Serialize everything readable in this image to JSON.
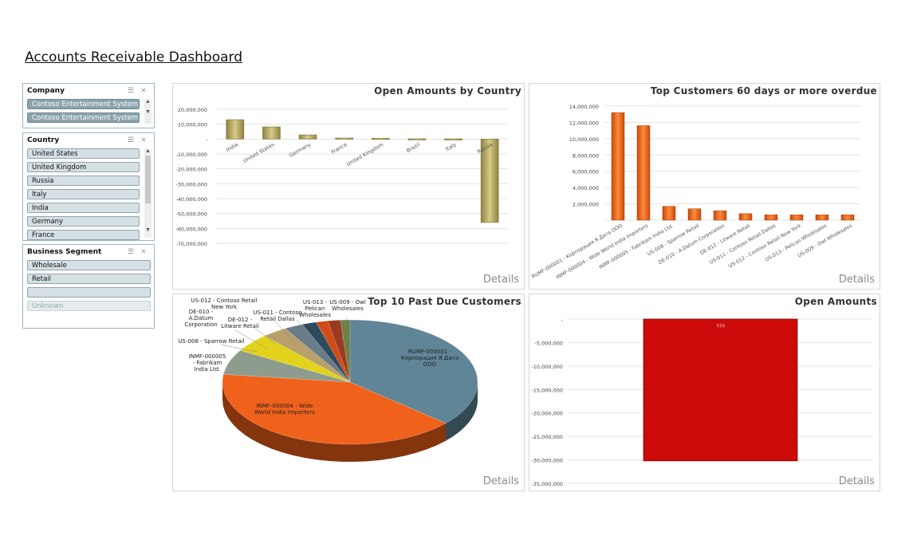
{
  "title": "Accounts Receivable Dashboard",
  "slicers": {
    "company": {
      "title": "Company",
      "items": [
        "Contoso Entertainment System ...",
        "Contoso Entertainment System ..."
      ]
    },
    "country": {
      "title": "Country",
      "items": [
        "United States",
        "United Kingdom",
        "Russia",
        "Italy",
        "India",
        "Germany",
        "France"
      ]
    },
    "segment": {
      "title": "Business Segment",
      "items": [
        "Wholesale",
        "Retail",
        "",
        "Unknown"
      ]
    }
  },
  "panels": {
    "country": {
      "title": "Open Amounts by Country",
      "details": "Details"
    },
    "overdue": {
      "title": "Top Customers 60 days or more overdue",
      "details": "Details"
    },
    "pastdue": {
      "title": "Top 10 Past Due Customers",
      "details": "Details"
    },
    "open": {
      "title": "Open Amounts",
      "details": "Details"
    }
  },
  "colors": {
    "gold": "#b8a860",
    "orange": "#f26a1b",
    "red": "#cc0a0a",
    "slate": "#5f8596"
  },
  "chart_data": [
    {
      "type": "bar",
      "title": "Open Amounts by Country",
      "categories": [
        "India",
        "United States",
        "Germany",
        "France",
        "United Kingdom",
        "Brazil",
        "Italy",
        "Russia"
      ],
      "values": [
        13000000,
        8200000,
        2800000,
        700000,
        500000,
        200000,
        150000,
        -56000000
      ],
      "ylim": [
        -70000000,
        20000000
      ],
      "yticks": [
        "20,000,000",
        "10,000,000",
        "-",
        "-10,000,000",
        "-20,000,000",
        "-30,000,000",
        "-40,000,000",
        "-50,000,000",
        "-60,000,000",
        "-70,000,000"
      ],
      "grid": true
    },
    {
      "type": "bar",
      "title": "Top Customers 60 days or more overdue",
      "categories": [
        "RUMF-000001 - Корпорация Я.Дата ООО",
        "INMF-000004 - Wide World India Importers",
        "INMF-000005 - Fabrikam India Ltd.",
        "US-008 - Sparrow Retail",
        "DE-010 - A.Datum Corporation",
        "DE-012 - Litware Retail",
        "US-011 - Contoso Retail Dallas",
        "US-012 - Contoso Retail New York",
        "US-013 - Pelican Wholesales",
        "US-009 - Owl Wholesales"
      ],
      "values": [
        13200000,
        11600000,
        1700000,
        1400000,
        1150000,
        800000,
        650000,
        650000,
        650000,
        650000
      ],
      "ylim": [
        0,
        14000000
      ],
      "yticks": [
        "14,000,000",
        "12,000,000",
        "10,000,000",
        "8,000,000",
        "6,000,000",
        "4,000,000",
        "2,000,000"
      ],
      "grid": true
    },
    {
      "type": "pie",
      "title": "Top 10 Past Due Customers",
      "labels": [
        "RUMF-000001 - Корпорация Я.Дата ООО",
        "INMF-000004 - Wide World India Importers",
        "INMF-000005 - Fabrikam India Ltd.",
        "US-008 - Sparrow Retail",
        "DE-010 - A.Datum Corporation",
        "DE-012 - Litware Retail",
        "US-012 - Contoso Retail New York",
        "US-011 - Contoso Retail Dallas",
        "US-013 - Pelican Wholesales",
        "US-009 - Owl Wholesales"
      ],
      "values": [
        36.5,
        40.5,
        6.5,
        4.8,
        3.2,
        2.4,
        1.8,
        1.5,
        1.6,
        1.2
      ],
      "colors": [
        "#5f8596",
        "#f0621b",
        "#8d9c8c",
        "#e2d21c",
        "#b8a06a",
        "#6a7c88",
        "#2e4a5c",
        "#d24a14",
        "#9a3a20",
        "#6f7f4a"
      ]
    },
    {
      "type": "bar",
      "title": "Open Amounts",
      "categories": [
        ""
      ],
      "values": [
        -30200000
      ],
      "data_label": "$$$",
      "ylim": [
        -35000000,
        0
      ],
      "yticks": [
        "-",
        "-5,000,000",
        "-10,000,000",
        "-15,000,000",
        "-20,000,000",
        "-25,000,000",
        "-30,000,000",
        "-35,000,000"
      ],
      "grid": true
    }
  ]
}
